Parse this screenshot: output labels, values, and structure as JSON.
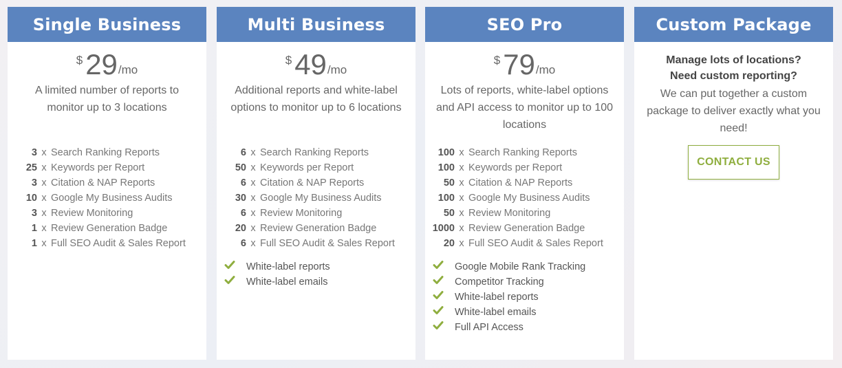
{
  "plans": [
    {
      "title": "Single Business",
      "currency": "$",
      "price": "29",
      "period": "/mo",
      "description": "A limited number of reports to monitor up to 3 locations",
      "features": [
        {
          "qty": "3",
          "x": "x",
          "label": "Search Ranking Reports"
        },
        {
          "qty": "25",
          "x": "x",
          "label": "Keywords per Report"
        },
        {
          "qty": "3",
          "x": "x",
          "label": "Citation & NAP Reports"
        },
        {
          "qty": "10",
          "x": "x",
          "label": "Google My Business Audits"
        },
        {
          "qty": "3",
          "x": "x",
          "label": "Review Monitoring"
        },
        {
          "qty": "1",
          "x": "x",
          "label": "Review Generation Badge"
        },
        {
          "qty": "1",
          "x": "x",
          "label": "Full SEO Audit & Sales Report"
        }
      ],
      "checks": []
    },
    {
      "title": "Multi Business",
      "currency": "$",
      "price": "49",
      "period": "/mo",
      "description": "Additional reports and white-label options to monitor up to 6 locations",
      "features": [
        {
          "qty": "6",
          "x": "x",
          "label": "Search Ranking Reports"
        },
        {
          "qty": "50",
          "x": "x",
          "label": "Keywords per Report"
        },
        {
          "qty": "6",
          "x": "x",
          "label": "Citation & NAP Reports"
        },
        {
          "qty": "30",
          "x": "x",
          "label": "Google My Business Audits"
        },
        {
          "qty": "6",
          "x": "x",
          "label": "Review Monitoring"
        },
        {
          "qty": "20",
          "x": "x",
          "label": "Review Generation Badge"
        },
        {
          "qty": "6",
          "x": "x",
          "label": "Full SEO Audit & Sales Report"
        }
      ],
      "checks": [
        "White-label reports",
        "White-label emails"
      ]
    },
    {
      "title": "SEO Pro",
      "currency": "$",
      "price": "79",
      "period": "/mo",
      "description": "Lots of reports, white-label options and API access to monitor up to 100 locations",
      "features": [
        {
          "qty": "100",
          "x": "x",
          "label": "Search Ranking Reports"
        },
        {
          "qty": "100",
          "x": "x",
          "label": "Keywords per Report"
        },
        {
          "qty": "50",
          "x": "x",
          "label": "Citation & NAP Reports"
        },
        {
          "qty": "100",
          "x": "x",
          "label": "Google My Business Audits"
        },
        {
          "qty": "50",
          "x": "x",
          "label": "Review Monitoring"
        },
        {
          "qty": "1000",
          "x": "x",
          "label": "Review Generation Badge"
        },
        {
          "qty": "20",
          "x": "x",
          "label": "Full SEO Audit & Sales Report"
        }
      ],
      "checks": [
        "Google Mobile Rank Tracking",
        "Competitor Tracking",
        "White-label reports",
        "White-label emails",
        "Full API Access"
      ]
    }
  ],
  "custom": {
    "title": "Custom Package",
    "question_1": "Manage lots of locations?",
    "question_2": "Need custom reporting?",
    "text": "We can put together a custom package to deliver exactly what you need!",
    "button_label": "CONTACT US"
  },
  "colors": {
    "header_bg": "#5b84bf",
    "check_green": "#8fae3f",
    "button_border": "#8fae3f"
  },
  "icons": {
    "check": "check-icon"
  }
}
